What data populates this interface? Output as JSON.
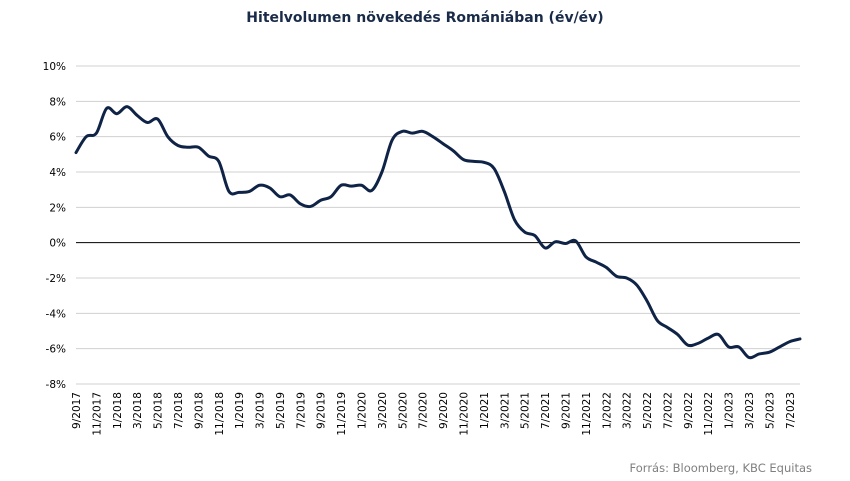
{
  "chart_data": {
    "type": "line",
    "title": "Hitelvolumen növekedés Romániában (év/év)",
    "source": "Forrás: Bloomberg, KBC Equitas",
    "ylim": [
      -8,
      10
    ],
    "y_ticks": [
      "10%",
      "8%",
      "6%",
      "4%",
      "2%",
      "0%",
      "-2%",
      "-4%",
      "-6%",
      "-8%"
    ],
    "y_tick_values": [
      10,
      8,
      6,
      4,
      2,
      0,
      -2,
      -4,
      -6,
      -8
    ],
    "x_tick_labels": [
      "9/2017",
      "11/2017",
      "1/2018",
      "3/2018",
      "5/2018",
      "7/2018",
      "9/2018",
      "11/2018",
      "1/2019",
      "3/2019",
      "5/2019",
      "7/2019",
      "9/2019",
      "11/2019",
      "1/2020",
      "3/2020",
      "5/2020",
      "7/2020",
      "9/2020",
      "11/2020",
      "1/2021",
      "3/2021",
      "5/2021",
      "7/2021",
      "9/2021",
      "11/2021",
      "1/2022",
      "3/2022",
      "5/2022",
      "7/2022",
      "9/2022",
      "11/2022",
      "1/2023",
      "3/2023",
      "5/2023",
      "7/2023"
    ],
    "grid": true,
    "series": [
      {
        "color": "#0f2347",
        "x": [
          "9/2017",
          "10/2017",
          "11/2017",
          "12/2017",
          "1/2018",
          "2/2018",
          "3/2018",
          "4/2018",
          "5/2018",
          "6/2018",
          "7/2018",
          "8/2018",
          "9/2018",
          "10/2018",
          "11/2018",
          "12/2018",
          "1/2019",
          "2/2019",
          "3/2019",
          "4/2019",
          "5/2019",
          "6/2019",
          "7/2019",
          "8/2019",
          "9/2019",
          "10/2019",
          "11/2019",
          "12/2019",
          "1/2020",
          "2/2020",
          "3/2020",
          "4/2020",
          "5/2020",
          "6/2020",
          "7/2020",
          "8/2020",
          "9/2020",
          "10/2020",
          "11/2020",
          "12/2020",
          "1/2021",
          "2/2021",
          "3/2021",
          "4/2021",
          "5/2021",
          "6/2021",
          "7/2021",
          "8/2021",
          "9/2021",
          "10/2021",
          "11/2021",
          "12/2021",
          "1/2022",
          "2/2022",
          "3/2022",
          "4/2022",
          "5/2022",
          "6/2022",
          "7/2022",
          "8/2022",
          "9/2022",
          "10/2022",
          "11/2022",
          "12/2022",
          "1/2023",
          "2/2023",
          "3/2023",
          "4/2023",
          "5/2023",
          "6/2023",
          "7/2023",
          "8/2023"
        ],
        "values": [
          5.1,
          6.0,
          6.2,
          7.6,
          7.3,
          7.7,
          7.2,
          6.8,
          7.0,
          6.0,
          5.5,
          5.4,
          5.4,
          4.9,
          4.6,
          2.9,
          2.85,
          2.9,
          3.25,
          3.1,
          2.6,
          2.7,
          2.2,
          2.05,
          2.4,
          2.6,
          3.25,
          3.2,
          3.25,
          2.95,
          4.0,
          5.8,
          6.3,
          6.2,
          6.3,
          6.0,
          5.6,
          5.2,
          4.7,
          4.6,
          4.55,
          4.2,
          2.9,
          1.3,
          0.6,
          0.4,
          -0.3,
          0.05,
          -0.05,
          0.1,
          -0.8,
          -1.1,
          -1.4,
          -1.9,
          -2.0,
          -2.4,
          -3.3,
          -4.4,
          -4.8,
          -5.2,
          -5.8,
          -5.7,
          -5.4,
          -5.2,
          -5.9,
          -5.9,
          -6.5,
          -6.3,
          -6.2,
          -5.9,
          -5.6,
          -5.45
        ]
      }
    ]
  }
}
